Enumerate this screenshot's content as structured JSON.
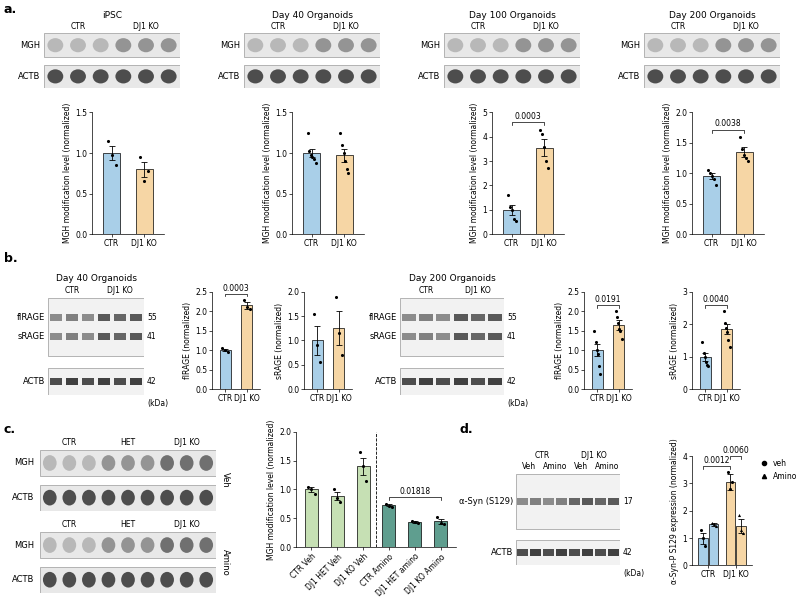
{
  "panel_labels": [
    "a.",
    "b.",
    "c.",
    "d."
  ],
  "blots": {
    "a": [
      {
        "title": "iPSC",
        "columns": [
          "CTR",
          "DJ1 KO"
        ],
        "rows": [
          "MGH",
          "ACTB"
        ]
      },
      {
        "title": "Day 40 Organoids",
        "columns": [
          "CTR",
          "DJ1 KO"
        ],
        "rows": [
          "MGH",
          "ACTB"
        ]
      },
      {
        "title": "Day 100 Organoids",
        "columns": [
          "CTR",
          "DJ1 KO"
        ],
        "rows": [
          "MGH",
          "ACTB"
        ]
      },
      {
        "title": "Day 200 Organoids",
        "columns": [
          "CTR",
          "DJ1 KO"
        ],
        "rows": [
          "MGH",
          "ACTB"
        ]
      }
    ],
    "b": [
      {
        "title": "Day 40 Organoids",
        "columns": [
          "CTR",
          "DJ1 KO"
        ],
        "rows": [
          {
            "label": "flRAGE",
            "marker": 55
          },
          {
            "label": "sRAGE",
            "marker": 41
          },
          {
            "label": "ACTB",
            "marker": 42
          }
        ],
        "unit": "(kDa)"
      },
      {
        "title": "Day 200 Organoids",
        "columns": [
          "CTR",
          "DJ1 KO"
        ],
        "rows": [
          {
            "label": "flRAGE",
            "marker": 55
          },
          {
            "label": "sRAGE",
            "marker": 41
          },
          {
            "label": "ACTB",
            "marker": 42
          }
        ],
        "unit": "(kDa)"
      }
    ],
    "c": [
      {
        "columns": [
          "CTR",
          "HET",
          "DJ1 KO"
        ],
        "rows": [
          "MGH",
          "ACTB"
        ],
        "side_label": "Veh"
      },
      {
        "columns": [
          "CTR",
          "HET",
          "DJ1 KO"
        ],
        "rows": [
          "MGH",
          "ACTB"
        ],
        "side_label": "Amino"
      }
    ],
    "d": {
      "columns": [
        "CTR",
        "DJ1 KO"
      ],
      "subcolumns": [
        "Veh",
        "Amino"
      ],
      "rows": [
        {
          "label": "α-Syn (S129)",
          "marker": 17
        },
        {
          "label": "ACTB",
          "marker": 42
        }
      ],
      "unit": "(kDa)"
    }
  },
  "chart_data": [
    {
      "type": "bar",
      "y_label": "MGH modification level (normalized)",
      "categories": [
        "CTR",
        "DJ1 KO"
      ],
      "values": [
        1.0,
        0.8
      ],
      "errors": [
        0.09,
        0.09
      ],
      "points": [
        [
          1.15,
          0.98,
          0.85
        ],
        [
          0.95,
          0.65,
          0.78
        ]
      ],
      "colors": [
        "#a9cfe8",
        "#f6d6a5"
      ],
      "ylim": [
        0.0,
        1.5
      ],
      "yticks": [
        0.0,
        0.5,
        1.0,
        1.5
      ]
    },
    {
      "type": "bar",
      "y_label": "MGH modification level (normalized)",
      "categories": [
        "CTR",
        "DJ1 KO"
      ],
      "values": [
        1.0,
        0.97
      ],
      "errors": [
        0.05,
        0.08
      ],
      "points": [
        [
          1.25,
          1.02,
          0.98,
          0.95,
          0.92,
          0.88
        ],
        [
          1.25,
          1.1,
          1.0,
          0.9,
          0.8,
          0.75
        ]
      ],
      "colors": [
        "#a9cfe8",
        "#f6d6a5"
      ],
      "ylim": [
        0.0,
        1.5
      ],
      "yticks": [
        0.0,
        0.5,
        1.0,
        1.5
      ]
    },
    {
      "type": "bar",
      "y_label": "MGH modification level (normalized)",
      "categories": [
        "CTR",
        "DJ1 KO"
      ],
      "values": [
        1.0,
        3.55
      ],
      "errors": [
        0.2,
        0.35
      ],
      "points": [
        [
          1.6,
          1.1,
          1.0,
          0.6,
          0.55
        ],
        [
          4.3,
          4.1,
          3.6,
          3.0,
          2.7
        ]
      ],
      "colors": [
        "#a9cfe8",
        "#f6d6a5"
      ],
      "ylim": [
        0,
        5
      ],
      "yticks": [
        0,
        1,
        2,
        3,
        4,
        5
      ],
      "comparisons": [
        {
          "pair": [
            0,
            1
          ],
          "label": "0.0003"
        }
      ]
    },
    {
      "type": "bar",
      "y_label": "MGH modification level (normalized)",
      "categories": [
        "CTR",
        "DJ1 KO"
      ],
      "values": [
        0.95,
        1.35
      ],
      "errors": [
        0.05,
        0.08
      ],
      "points": [
        [
          1.05,
          1.0,
          0.95,
          0.9,
          0.8
        ],
        [
          1.6,
          1.4,
          1.3,
          1.25,
          1.2
        ]
      ],
      "colors": [
        "#a9cfe8",
        "#f6d6a5"
      ],
      "ylim": [
        0.0,
        2.0
      ],
      "yticks": [
        0.0,
        0.5,
        1.0,
        1.5,
        2.0
      ],
      "comparisons": [
        {
          "pair": [
            0,
            1
          ],
          "label": "0.0038"
        }
      ]
    },
    {
      "type": "bar",
      "y_label": "flRAGE (normalized)",
      "categories": [
        "CTR",
        "DJ1 KO"
      ],
      "values": [
        1.0,
        2.15
      ],
      "errors": [
        0.03,
        0.08
      ],
      "points": [
        [
          1.05,
          1.0,
          0.95
        ],
        [
          2.3,
          2.1,
          2.05
        ]
      ],
      "colors": [
        "#a9cfe8",
        "#f6d6a5"
      ],
      "ylim": [
        0.0,
        2.5
      ],
      "yticks": [
        0.0,
        0.5,
        1.0,
        1.5,
        2.0,
        2.5
      ],
      "comparisons": [
        {
          "pair": [
            0,
            1
          ],
          "label": "0.0003"
        }
      ]
    },
    {
      "type": "bar",
      "y_label": "sRAGE (normalized)",
      "categories": [
        "CTR",
        "DJ1 KO"
      ],
      "values": [
        1.0,
        1.25
      ],
      "errors": [
        0.3,
        0.35
      ],
      "points": [
        [
          1.55,
          0.9,
          0.55
        ],
        [
          1.9,
          1.15,
          0.7
        ]
      ],
      "colors": [
        "#a9cfe8",
        "#f6d6a5"
      ],
      "ylim": [
        0.0,
        2.0
      ],
      "yticks": [
        0.0,
        0.5,
        1.0,
        1.5,
        2.0
      ]
    },
    {
      "type": "bar",
      "y_label": "flRAGE (normalized)",
      "categories": [
        "CTR",
        "DJ1 KO"
      ],
      "values": [
        1.0,
        1.65
      ],
      "errors": [
        0.15,
        0.12
      ],
      "points": [
        [
          1.5,
          1.2,
          1.0,
          0.9,
          0.6,
          0.4
        ],
        [
          2.0,
          1.85,
          1.7,
          1.55,
          1.5,
          1.3
        ]
      ],
      "colors": [
        "#a9cfe8",
        "#f6d6a5"
      ],
      "ylim": [
        0.0,
        2.5
      ],
      "yticks": [
        0.0,
        0.5,
        1.0,
        1.5,
        2.0,
        2.5
      ],
      "comparisons": [
        {
          "pair": [
            0,
            1
          ],
          "label": "0.0191"
        }
      ]
    },
    {
      "type": "bar",
      "y_label": "sRAGE (normalized)",
      "categories": [
        "CTR",
        "DJ1 KO"
      ],
      "values": [
        1.0,
        1.85
      ],
      "errors": [
        0.12,
        0.15
      ],
      "points": [
        [
          1.45,
          1.1,
          1.0,
          0.85,
          0.75,
          0.7
        ],
        [
          2.4,
          2.05,
          1.9,
          1.75,
          1.5,
          1.3
        ]
      ],
      "colors": [
        "#a9cfe8",
        "#f6d6a5"
      ],
      "ylim": [
        0,
        3
      ],
      "yticks": [
        0,
        1,
        2,
        3
      ],
      "comparisons": [
        {
          "pair": [
            0,
            1
          ],
          "label": "0.0040"
        }
      ]
    },
    {
      "type": "bar",
      "y_label": "MGH modification level (normalized)",
      "categories": [
        "CTR Veh",
        "DJ1 HET Veh",
        "DJ1 KO Veh",
        "CTR Amino",
        "DJ1 HET amino",
        "DJ1 KO Amino"
      ],
      "values": [
        1.0,
        0.88,
        1.4,
        0.73,
        0.44,
        0.45
      ],
      "errors": [
        0.05,
        0.07,
        0.15,
        0.02,
        0.02,
        0.04
      ],
      "points": [
        [
          1.05,
          1.0,
          0.92
        ],
        [
          1.0,
          0.85,
          0.78
        ],
        [
          1.65,
          1.4,
          1.15
        ],
        [
          0.75,
          0.72,
          0.7
        ],
        [
          0.46,
          0.44,
          0.42
        ],
        [
          0.52,
          0.42,
          0.41
        ]
      ],
      "colors": [
        "#c6e0b4",
        "#c6e0b4",
        "#c6e0b4",
        "#5f9e8f",
        "#5f9e8f",
        "#5f9e8f"
      ],
      "ylim": [
        0.0,
        2.0
      ],
      "yticks": [
        0.0,
        0.5,
        1.0,
        1.5,
        2.0
      ],
      "comparisons": [
        {
          "pair": [
            3,
            5
          ],
          "label": "0.01818"
        }
      ]
    },
    {
      "type": "bar",
      "y_label": "α-Syn-P S129 expression (normalized)",
      "categories": [
        "CTR",
        "DJ1 KO"
      ],
      "colors": [
        "#a9cfe8",
        "#f6d6a5"
      ],
      "legend": "right",
      "series": [
        {
          "name": "veh",
          "marker": "circle",
          "values": [
            1.0,
            3.05
          ],
          "errors": [
            0.2,
            0.3
          ],
          "points": [
            [
              1.3,
              1.0,
              0.7
            ],
            [
              3.4,
              2.8,
              3.05
            ]
          ]
        },
        {
          "name": "Amino",
          "marker": "triangle",
          "values": [
            1.5,
            1.45
          ],
          "errors": [
            0.05,
            0.25
          ],
          "points": [
            [
              1.55,
              1.5,
              1.45
            ],
            [
              1.85,
              1.3,
              1.2
            ]
          ]
        }
      ],
      "ylim": [
        0,
        4
      ],
      "yticks": [
        0,
        1,
        2,
        3,
        4
      ],
      "comparisons": [
        {
          "pair": [
            [
              0,
              0
            ],
            [
              1,
              0
            ]
          ],
          "label": "0.0012"
        },
        {
          "pair": [
            [
              1,
              0
            ],
            [
              1,
              1
            ]
          ],
          "label": "0.0060"
        }
      ]
    }
  ]
}
